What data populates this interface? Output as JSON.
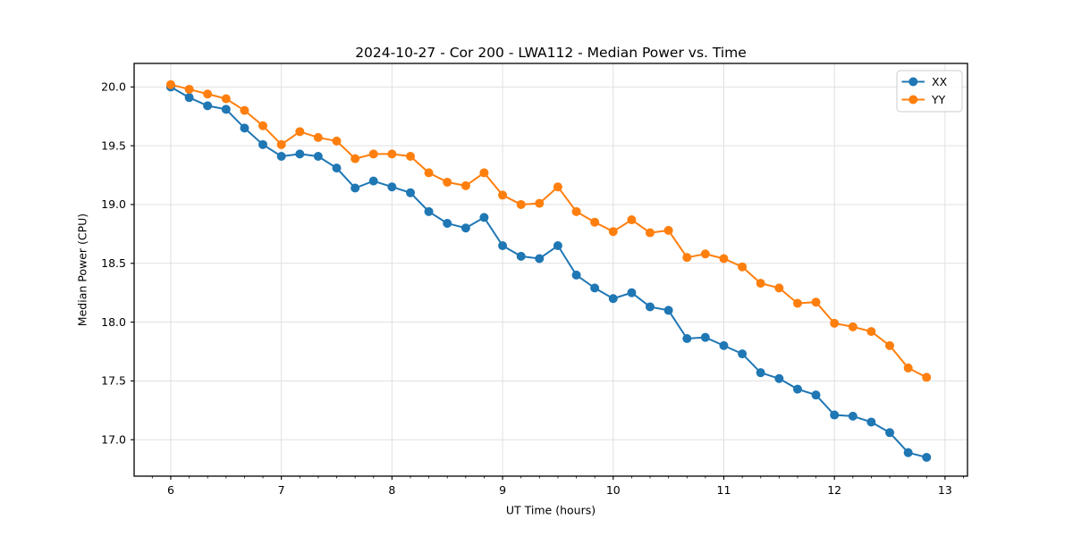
{
  "figure": {
    "title": "2024-10-27 - Cor 200 - LWA112 - Median Power vs. Time",
    "xlabel": "UT Time (hours)",
    "ylabel": "Median Power (CPU)"
  },
  "colors": {
    "series_xx": "#1f77b4",
    "series_yy": "#ff7f0e",
    "grid": "#e0e0e0",
    "spine": "#000000",
    "legend_border": "#cccccc",
    "background": "#ffffff"
  },
  "chart_data": {
    "type": "line",
    "title": "2024-10-27 - Cor 200 - LWA112 - Median Power vs. Time",
    "xlabel": "UT Time (hours)",
    "ylabel": "Median Power (CPU)",
    "xlim": [
      5.669,
      13.203
    ],
    "ylim": [
      16.69,
      20.2
    ],
    "xticks": [
      6,
      7,
      8,
      9,
      10,
      11,
      12,
      13
    ],
    "yticks": [
      17.0,
      17.5,
      18.0,
      18.5,
      19.0,
      19.5,
      20.0
    ],
    "x_minor_step": 0.16667,
    "grid": true,
    "legend_position": "upper right",
    "legend_entries": [
      "XX",
      "YY"
    ],
    "x": [
      6,
      6.167,
      6.333,
      6.5,
      6.667,
      6.833,
      7,
      7.167,
      7.333,
      7.5,
      7.667,
      7.833,
      8,
      8.167,
      8.333,
      8.5,
      8.667,
      8.833,
      9,
      9.167,
      9.333,
      9.5,
      9.667,
      9.833,
      10,
      10.167,
      10.333,
      10.5,
      10.667,
      10.833,
      11,
      11.167,
      11.333,
      11.5,
      11.667,
      11.833,
      12,
      12.167,
      12.333,
      12.5,
      12.667,
      12.833
    ],
    "series": [
      {
        "name": "XX",
        "color": "#1f77b4",
        "values": [
          20.0,
          19.91,
          19.84,
          19.81,
          19.65,
          19.51,
          19.41,
          19.43,
          19.41,
          19.31,
          19.14,
          19.2,
          19.15,
          19.1,
          18.94,
          18.84,
          18.8,
          18.89,
          18.65,
          18.56,
          18.54,
          18.65,
          18.4,
          18.29,
          18.2,
          18.25,
          18.13,
          18.1,
          17.86,
          17.87,
          17.8,
          17.73,
          17.57,
          17.52,
          17.43,
          17.38,
          17.21,
          17.2,
          17.15,
          17.06,
          16.89,
          16.85
        ]
      },
      {
        "name": "YY",
        "color": "#ff7f0e",
        "values": [
          20.02,
          19.98,
          19.94,
          19.9,
          19.8,
          19.67,
          19.51,
          19.62,
          19.57,
          19.54,
          19.39,
          19.43,
          19.43,
          19.41,
          19.27,
          19.19,
          19.16,
          19.27,
          19.08,
          19.0,
          19.01,
          19.15,
          18.94,
          18.85,
          18.77,
          18.87,
          18.76,
          18.78,
          18.55,
          18.58,
          18.54,
          18.47,
          18.33,
          18.29,
          18.16,
          18.17,
          17.99,
          17.96,
          17.92,
          17.8,
          17.61,
          17.53
        ]
      }
    ]
  }
}
